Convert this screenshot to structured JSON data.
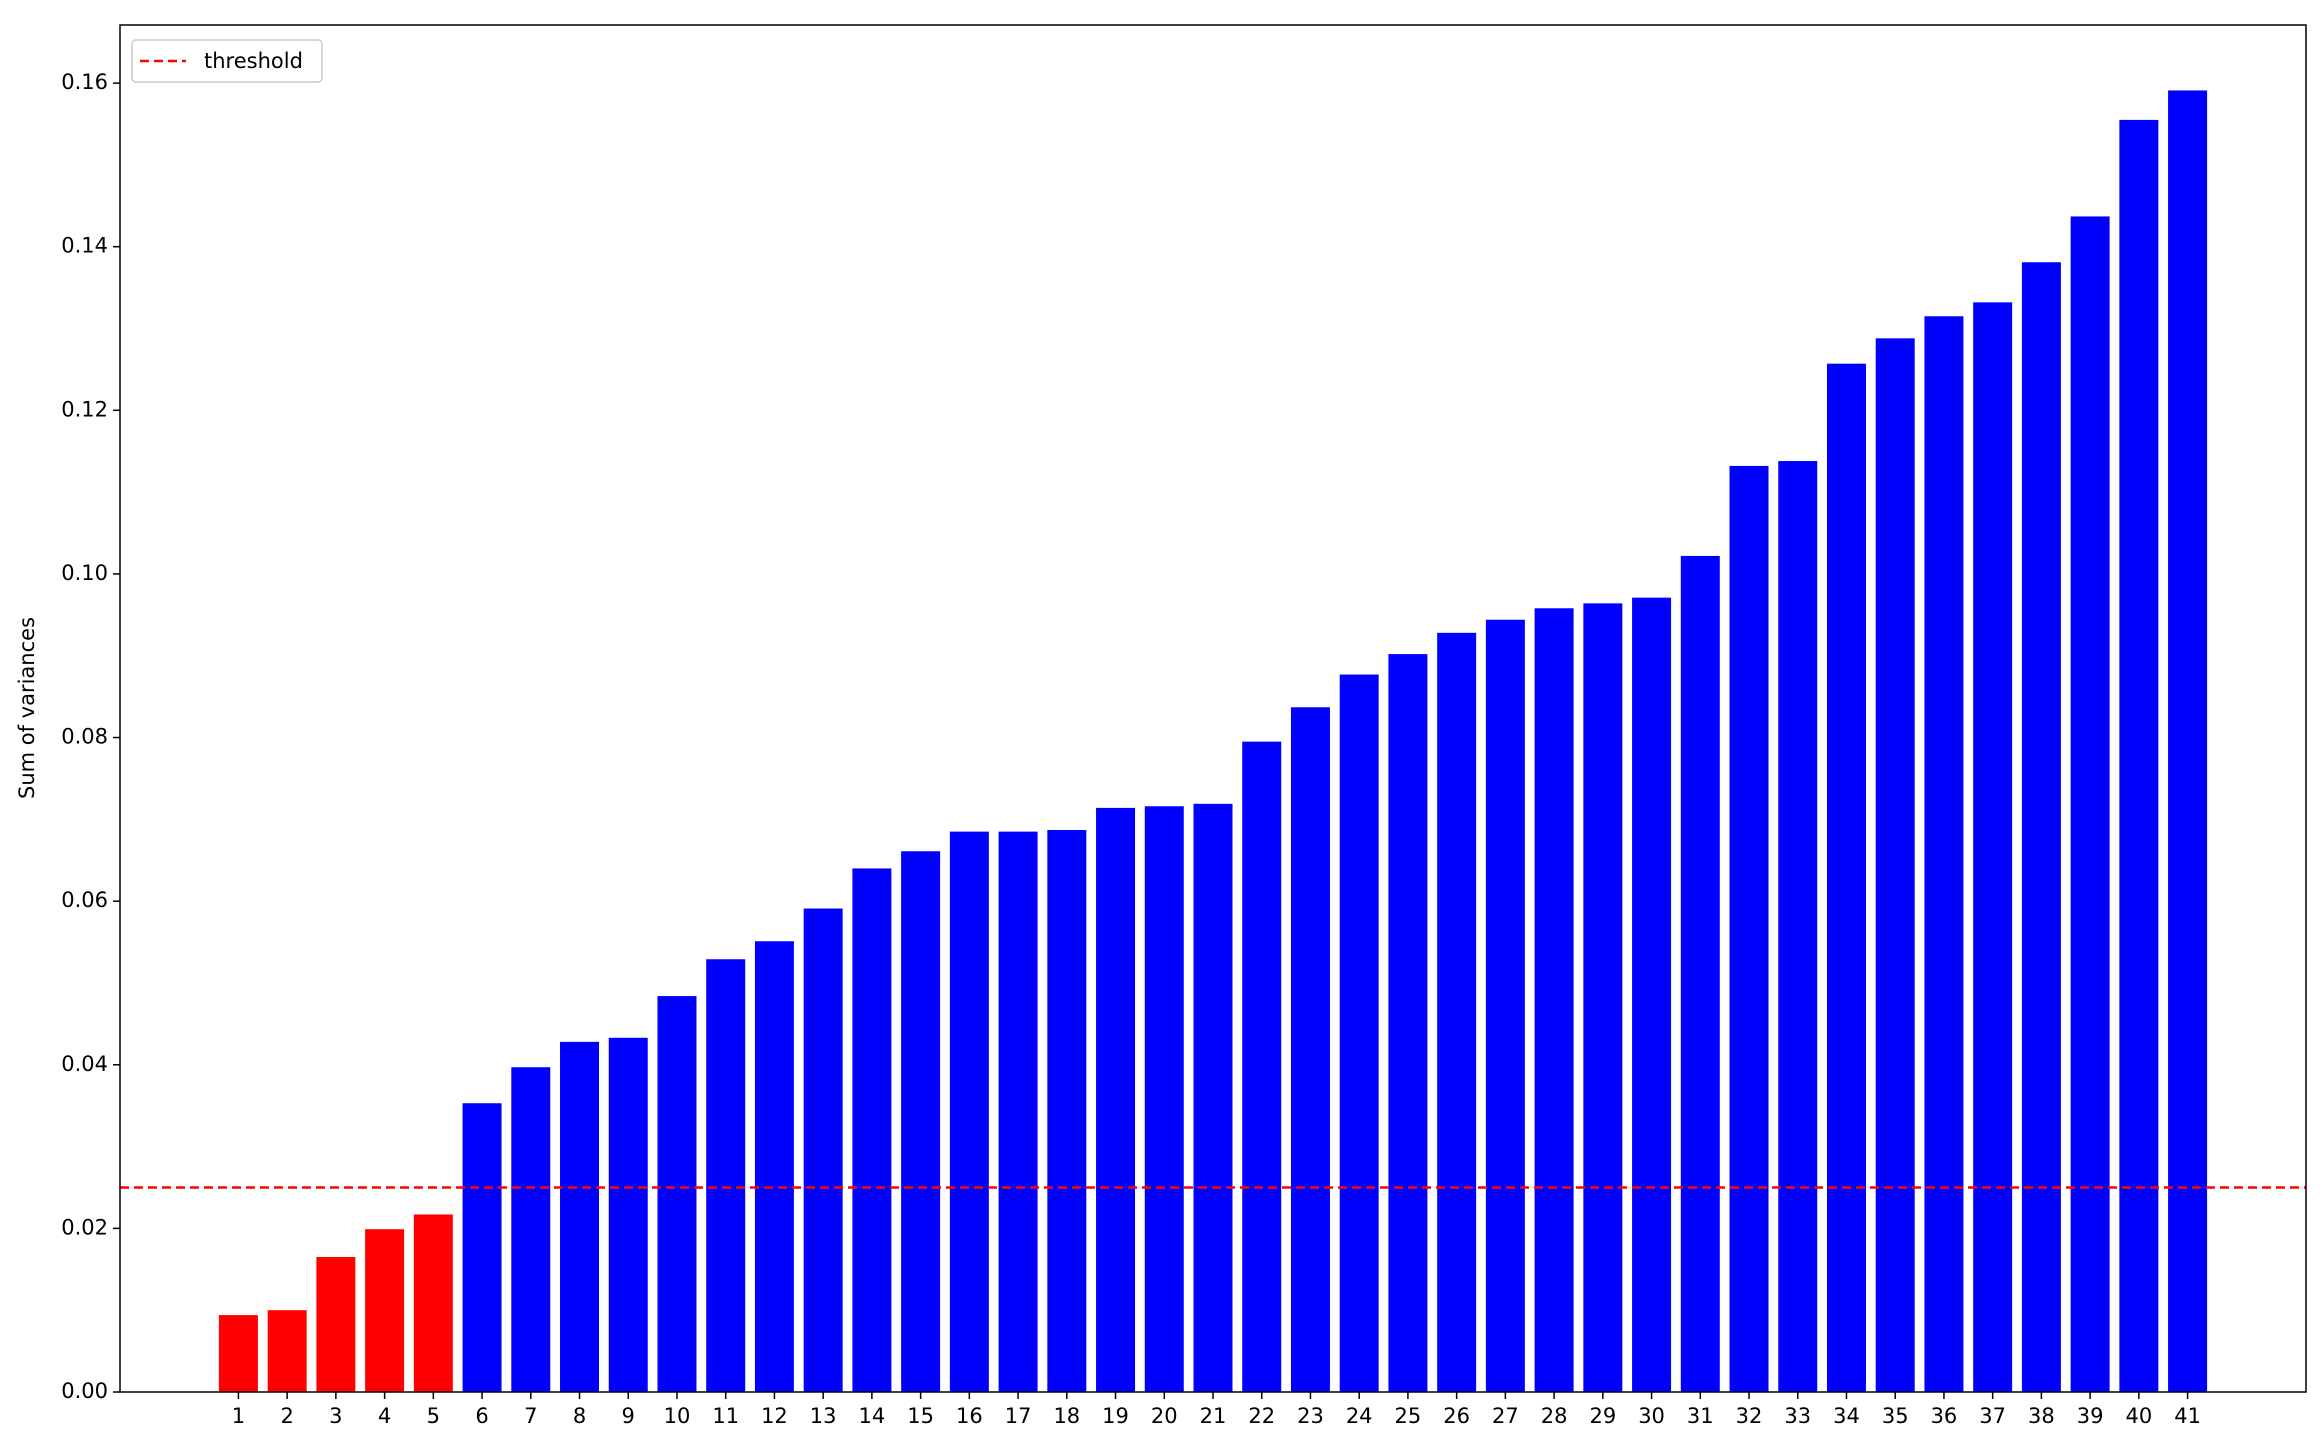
{
  "chart_data": {
    "type": "bar",
    "y_label": "Sum of variances",
    "x": [
      1,
      2,
      3,
      4,
      5,
      6,
      7,
      8,
      9,
      10,
      11,
      12,
      13,
      14,
      15,
      16,
      17,
      18,
      19,
      20,
      21,
      22,
      23,
      24,
      25,
      26,
      27,
      28,
      29,
      30,
      31,
      32,
      33,
      34,
      35,
      36,
      37,
      38,
      39,
      40,
      41
    ],
    "values": [
      0.0094,
      0.01,
      0.0165,
      0.0199,
      0.0217,
      0.0353,
      0.0397,
      0.0428,
      0.0433,
      0.0484,
      0.0529,
      0.0551,
      0.0591,
      0.064,
      0.0661,
      0.0685,
      0.0685,
      0.0687,
      0.0714,
      0.0716,
      0.0719,
      0.0795,
      0.0837,
      0.0877,
      0.0902,
      0.0928,
      0.0944,
      0.0958,
      0.0964,
      0.0971,
      0.1022,
      0.1132,
      0.1138,
      0.1257,
      0.1288,
      0.1315,
      0.1332,
      0.1381,
      0.1437,
      0.1555,
      0.1591
    ],
    "colors": [
      "#ff0000",
      "#ff0000",
      "#ff0000",
      "#ff0000",
      "#ff0000",
      "#0000ff",
      "#0000ff",
      "#0000ff",
      "#0000ff",
      "#0000ff",
      "#0000ff",
      "#0000ff",
      "#0000ff",
      "#0000ff",
      "#0000ff",
      "#0000ff",
      "#0000ff",
      "#0000ff",
      "#0000ff",
      "#0000ff",
      "#0000ff",
      "#0000ff",
      "#0000ff",
      "#0000ff",
      "#0000ff",
      "#0000ff",
      "#0000ff",
      "#0000ff",
      "#0000ff",
      "#0000ff",
      "#0000ff",
      "#0000ff",
      "#0000ff",
      "#0000ff",
      "#0000ff",
      "#0000ff",
      "#0000ff",
      "#0000ff",
      "#0000ff",
      "#0000ff",
      "#0000ff"
    ],
    "bar_width": 0.8,
    "xlim": [
      -1.43,
      43.43
    ],
    "xticks": [
      1,
      2,
      3,
      4,
      5,
      6,
      7,
      8,
      9,
      10,
      11,
      12,
      13,
      14,
      15,
      16,
      17,
      18,
      19,
      20,
      21,
      22,
      23,
      24,
      25,
      26,
      27,
      28,
      29,
      30,
      31,
      32,
      33,
      34,
      35,
      36,
      37,
      38,
      39,
      40,
      41
    ],
    "ylim": [
      0,
      0.1671
    ],
    "yticks": [
      {
        "value": 0,
        "label": "0.00"
      },
      0.02,
      0.04,
      0.06,
      0.08,
      {
        "value": 0.1,
        "label": "0.10"
      },
      0.12,
      0.14,
      0.16
    ],
    "threshold": {
      "name": "threshold",
      "value": 0.025,
      "color": "#ff0000"
    },
    "legend": "upper left",
    "grid": false
  }
}
